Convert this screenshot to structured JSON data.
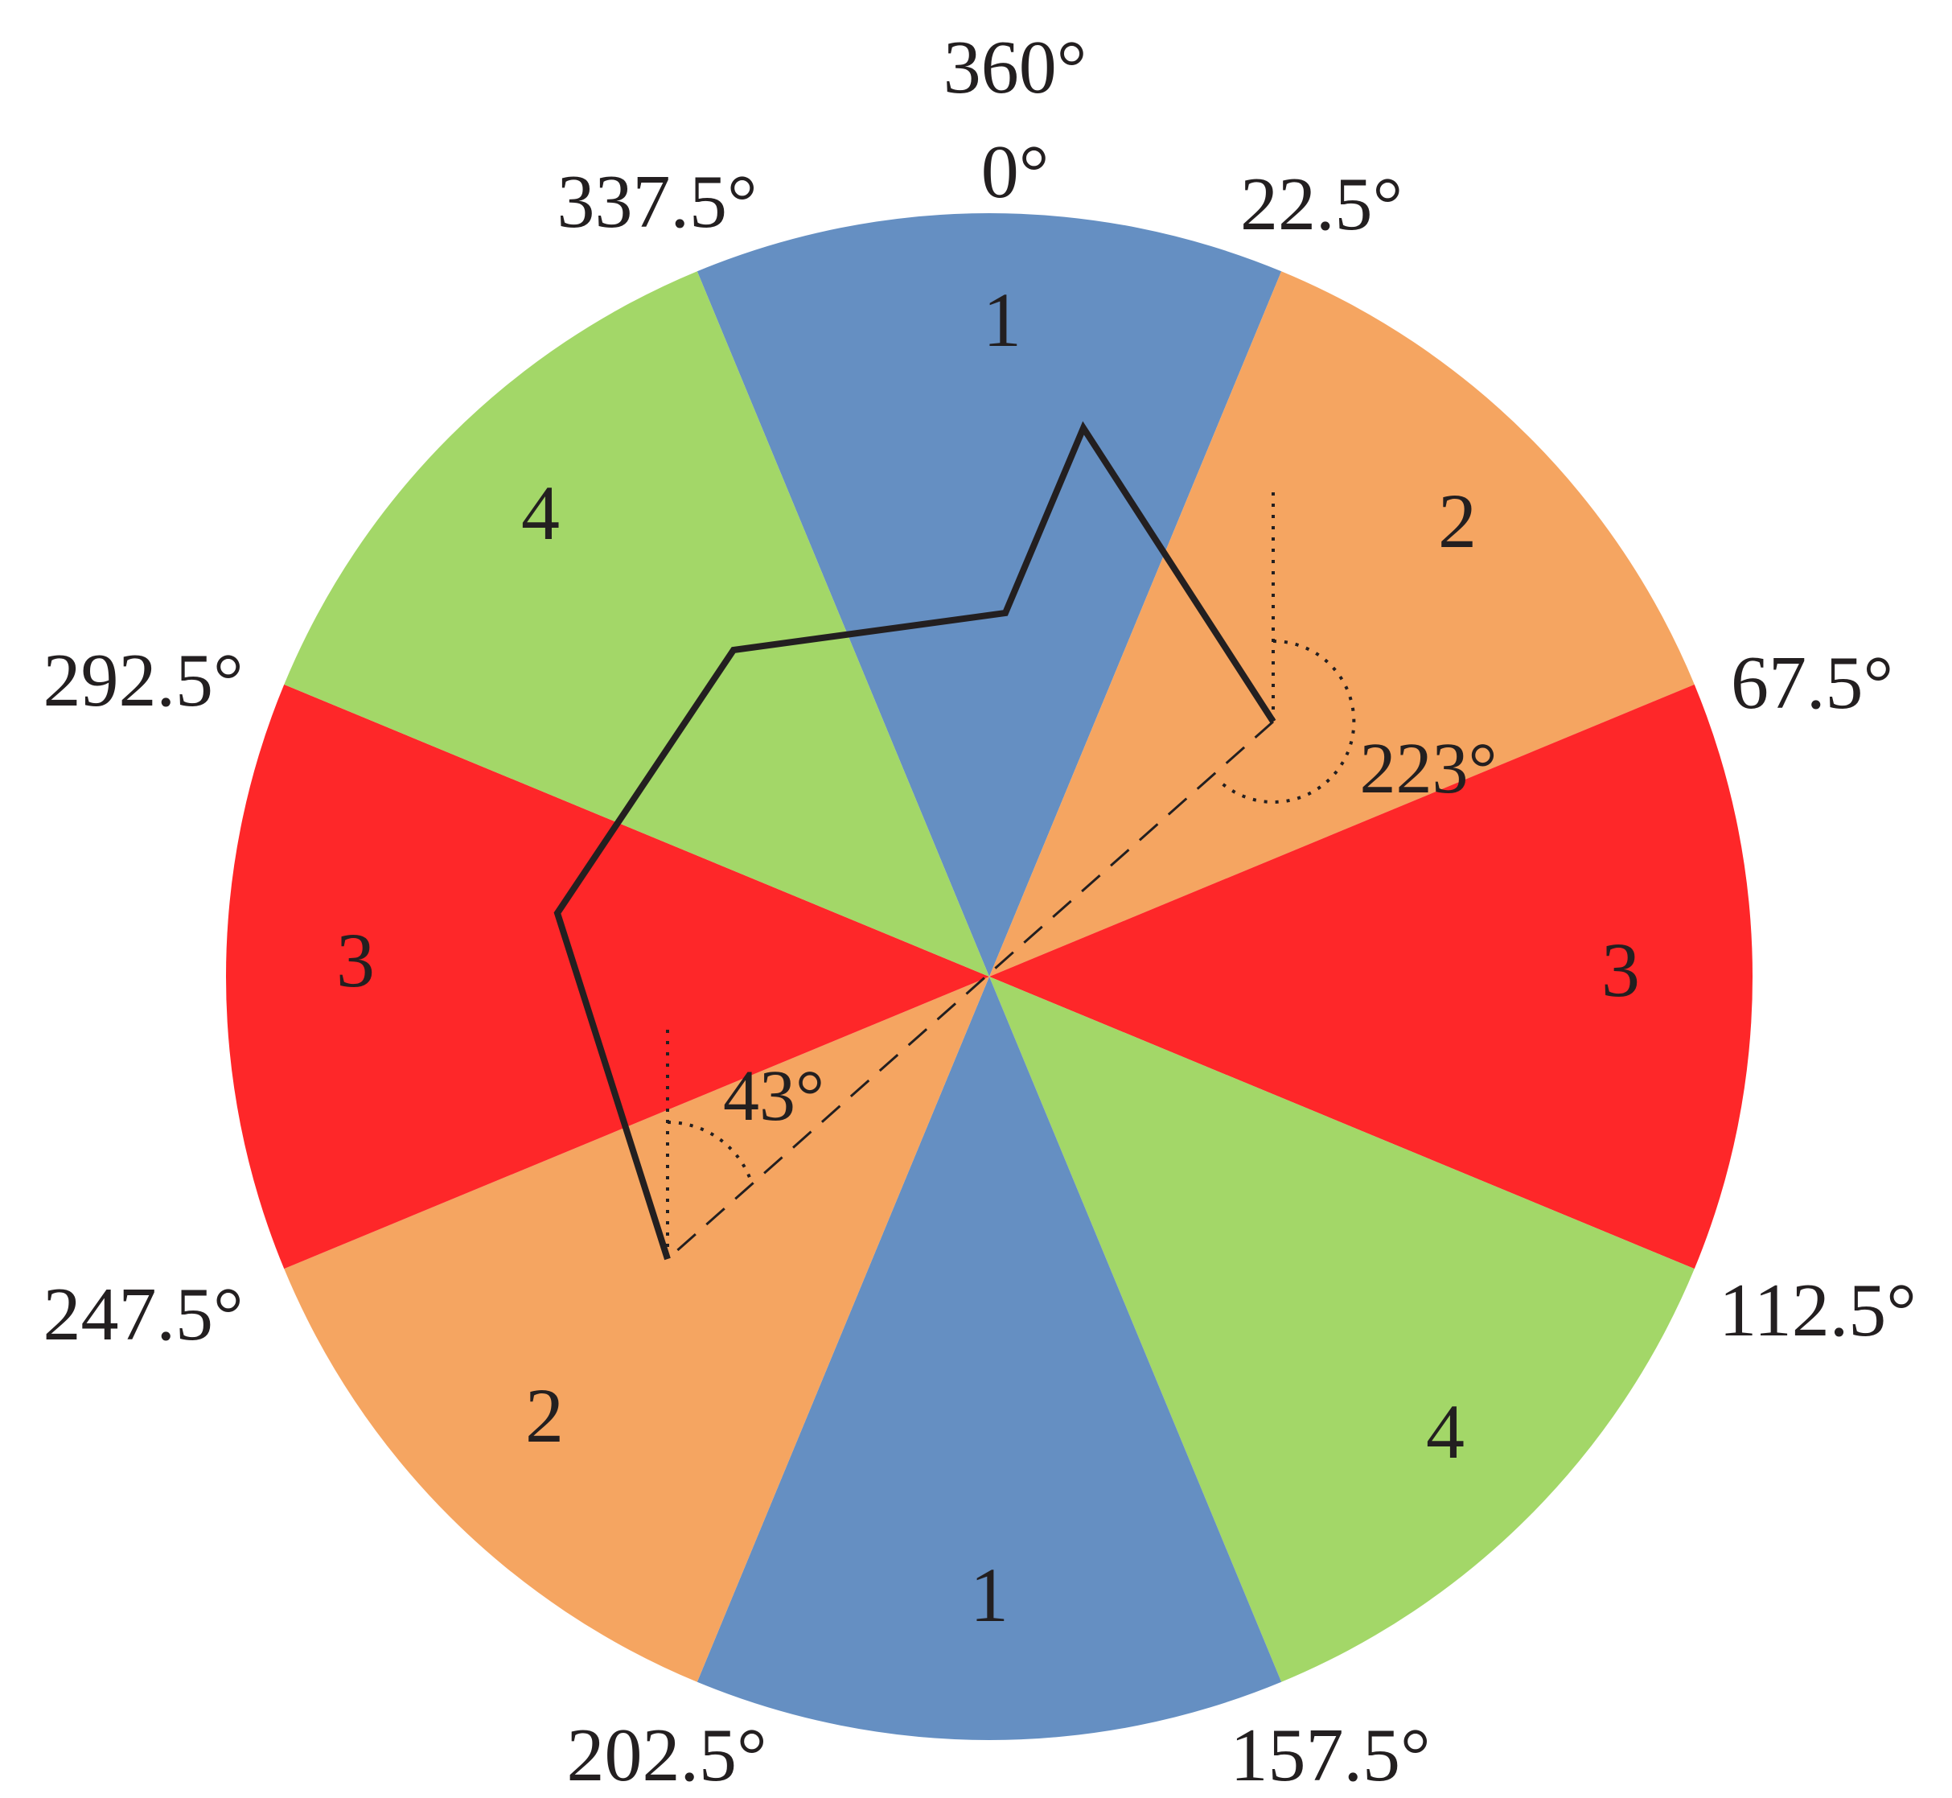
{
  "sectors": [
    {
      "start_deg": 337.5,
      "end_deg": 22.5,
      "zone": "1",
      "color": "#658fc2"
    },
    {
      "start_deg": 22.5,
      "end_deg": 67.5,
      "zone": "2",
      "color": "#f5a561"
    },
    {
      "start_deg": 67.5,
      "end_deg": 112.5,
      "zone": "3",
      "color": "#fe2729"
    },
    {
      "start_deg": 112.5,
      "end_deg": 157.5,
      "zone": "4",
      "color": "#a3d768"
    },
    {
      "start_deg": 157.5,
      "end_deg": 202.5,
      "zone": "1",
      "color": "#658fc2"
    },
    {
      "start_deg": 202.5,
      "end_deg": 247.5,
      "zone": "2",
      "color": "#f5a561"
    },
    {
      "start_deg": 247.5,
      "end_deg": 292.5,
      "zone": "3",
      "color": "#fe2729"
    },
    {
      "start_deg": 292.5,
      "end_deg": 337.5,
      "zone": "4",
      "color": "#a3d768"
    }
  ],
  "boundary_labels": {
    "top_360": "360°",
    "top_0": "0°",
    "b22_5": "22.5°",
    "b67_5": "67.5°",
    "b112_5": "112.5°",
    "b157_5": "157.5°",
    "b202_5": "202.5°",
    "b247_5": "247.5°",
    "b292_5": "292.5°",
    "b337_5": "337.5°"
  },
  "angle_annotations": {
    "upper": "223°",
    "lower": "43°"
  },
  "colors": {
    "zone_1": "#658fc2",
    "zone_2": "#f5a561",
    "zone_3": "#fe2729",
    "zone_4": "#a3d768",
    "path": "#231f20"
  }
}
